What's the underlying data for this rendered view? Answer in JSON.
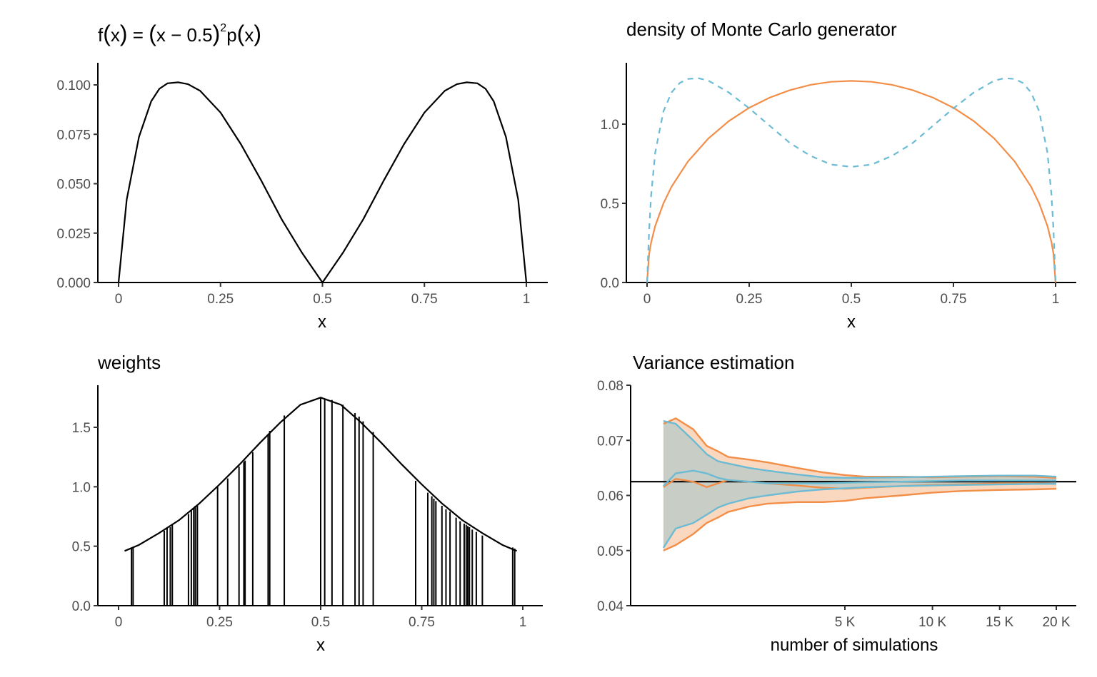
{
  "figure": {
    "panel1": {
      "title_parts": [
        "f",
        "(",
        "x",
        ")",
        " = ",
        "(",
        "x − 0.5",
        ")",
        "2",
        "p",
        "(",
        "x",
        ")"
      ]
    },
    "panel2": {
      "title": "density of Monte Carlo generator"
    },
    "panel3": {
      "title": "weights"
    },
    "panel4": {
      "title": "Variance estimation"
    }
  },
  "chart_data": [
    {
      "type": "line",
      "title": "f(x) = (x − 0.5)²p(x)",
      "xlabel": "x",
      "ylabel": "",
      "xlim": [
        0,
        1
      ],
      "ylim": [
        0,
        0.11
      ],
      "x_ticks": [
        0,
        0.25,
        0.5,
        0.75,
        1
      ],
      "x_tick_labels": [
        "0",
        "0.25",
        "0.5",
        "0.75",
        "1"
      ],
      "y_ticks": [
        0,
        0.025,
        0.05,
        0.075,
        0.1
      ],
      "y_tick_labels": [
        "0.000",
        "0.025",
        "0.050",
        "0.075",
        "0.100"
      ],
      "series": [
        {
          "color": "#000000",
          "dash": "solid",
          "x": [
            0,
            0.02,
            0.05,
            0.08,
            0.1,
            0.12,
            0.146,
            0.17,
            0.2,
            0.25,
            0.3,
            0.35,
            0.4,
            0.45,
            0.5,
            0.55,
            0.6,
            0.65,
            0.7,
            0.75,
            0.8,
            0.83,
            0.854,
            0.88,
            0.9,
            0.92,
            0.95,
            0.98,
            1
          ],
          "y": [
            0,
            0.0419,
            0.0737,
            0.0917,
            0.098,
            0.1008,
            0.1013,
            0.1004,
            0.097,
            0.086,
            0.07,
            0.0515,
            0.032,
            0.015,
            0,
            0.015,
            0.032,
            0.0515,
            0.07,
            0.086,
            0.097,
            0.1004,
            0.1013,
            0.1008,
            0.098,
            0.0917,
            0.0737,
            0.0419,
            0
          ]
        }
      ]
    },
    {
      "type": "line",
      "title": "density of Monte Carlo generator",
      "xlabel": "x",
      "ylabel": "",
      "xlim": [
        0,
        1
      ],
      "ylim": [
        0,
        1.3
      ],
      "x_ticks": [
        0,
        0.25,
        0.5,
        0.75,
        1
      ],
      "x_tick_labels": [
        "0",
        "0.25",
        "0.5",
        "0.75",
        "1"
      ],
      "y_ticks": [
        0,
        0.5,
        1.0
      ],
      "y_tick_labels": [
        "0.0",
        "0.5",
        "1.0"
      ],
      "series": [
        {
          "color": "#F28E48",
          "dash": "solid",
          "x": [
            0,
            0.005,
            0.01,
            0.02,
            0.04,
            0.06,
            0.1,
            0.15,
            0.2,
            0.25,
            0.3,
            0.35,
            0.4,
            0.45,
            0.5,
            0.55,
            0.6,
            0.65,
            0.7,
            0.75,
            0.8,
            0.85,
            0.9,
            0.94,
            0.96,
            0.98,
            0.99,
            0.995,
            1
          ],
          "y": [
            0,
            0.18,
            0.253,
            0.357,
            0.499,
            0.605,
            0.764,
            0.909,
            1.019,
            1.103,
            1.167,
            1.215,
            1.248,
            1.267,
            1.273,
            1.267,
            1.248,
            1.215,
            1.167,
            1.103,
            1.019,
            0.909,
            0.764,
            0.605,
            0.499,
            0.357,
            0.253,
            0.18,
            0
          ]
        },
        {
          "color": "#6BBBD4",
          "dash": "dashed",
          "x": [
            0,
            0.005,
            0.01,
            0.02,
            0.04,
            0.06,
            0.08,
            0.1,
            0.125,
            0.15,
            0.2,
            0.25,
            0.3,
            0.35,
            0.4,
            0.45,
            0.5,
            0.55,
            0.6,
            0.65,
            0.7,
            0.75,
            0.8,
            0.85,
            0.875,
            0.9,
            0.92,
            0.94,
            0.96,
            0.98,
            0.99,
            0.995,
            1
          ],
          "y": [
            0,
            0.33,
            0.55,
            0.82,
            1.08,
            1.2,
            1.26,
            1.285,
            1.29,
            1.275,
            1.2,
            1.1,
            0.99,
            0.88,
            0.8,
            0.745,
            0.73,
            0.745,
            0.8,
            0.88,
            0.99,
            1.1,
            1.2,
            1.275,
            1.29,
            1.285,
            1.26,
            1.2,
            1.08,
            0.82,
            0.55,
            0.33,
            0
          ]
        }
      ]
    },
    {
      "type": "line",
      "title": "weights",
      "xlabel": "x",
      "ylabel": "",
      "xlim": [
        0,
        1
      ],
      "ylim": [
        0,
        1.8
      ],
      "x_ticks": [
        0,
        0.25,
        0.5,
        0.75,
        1
      ],
      "x_tick_labels": [
        "0",
        "0.25",
        "0.5",
        "0.75",
        "1"
      ],
      "y_ticks": [
        0,
        0.5,
        1.0,
        1.5
      ],
      "y_tick_labels": [
        "0.0",
        "0.5",
        "1.0",
        "1.5"
      ],
      "curve": {
        "x": [
          0.015,
          0.05,
          0.1,
          0.15,
          0.2,
          0.25,
          0.3,
          0.35,
          0.4,
          0.45,
          0.5,
          0.55,
          0.6,
          0.65,
          0.7,
          0.75,
          0.8,
          0.85,
          0.9,
          0.95,
          0.985
        ],
        "y": [
          0.46,
          0.51,
          0.61,
          0.72,
          0.86,
          1.02,
          1.19,
          1.37,
          1.54,
          1.69,
          1.75,
          1.69,
          1.54,
          1.37,
          1.19,
          1.02,
          0.86,
          0.72,
          0.61,
          0.51,
          0.46
        ]
      },
      "sample_x": [
        0.032,
        0.036,
        0.113,
        0.12,
        0.128,
        0.133,
        0.173,
        0.18,
        0.186,
        0.19,
        0.195,
        0.245,
        0.27,
        0.298,
        0.31,
        0.313,
        0.332,
        0.37,
        0.374,
        0.41,
        0.5,
        0.51,
        0.528,
        0.555,
        0.585,
        0.595,
        0.605,
        0.63,
        0.735,
        0.765,
        0.775,
        0.78,
        0.785,
        0.8,
        0.81,
        0.82,
        0.835,
        0.845,
        0.855,
        0.86,
        0.864,
        0.868,
        0.875,
        0.885,
        0.9,
        0.975,
        0.98
      ],
      "sample_y": [
        0.48,
        0.49,
        0.63,
        0.65,
        0.66,
        0.68,
        0.77,
        0.8,
        0.82,
        0.84,
        0.85,
        1.0,
        1.07,
        1.17,
        1.21,
        1.22,
        1.29,
        1.44,
        1.47,
        1.6,
        1.75,
        1.74,
        1.73,
        1.69,
        1.62,
        1.59,
        1.55,
        1.46,
        1.05,
        0.95,
        0.92,
        0.9,
        0.88,
        0.84,
        0.81,
        0.79,
        0.74,
        0.71,
        0.69,
        0.68,
        0.67,
        0.66,
        0.64,
        0.62,
        0.59,
        0.49,
        0.48
      ]
    },
    {
      "type": "line",
      "title": "Variance estimation",
      "xlabel": "number of simulations",
      "ylabel": "",
      "xlim": [
        0,
        20000
      ],
      "x_scale": "sqrt",
      "ylim": [
        0.04,
        0.08
      ],
      "x_ticks": [
        5000,
        10000,
        15000,
        20000
      ],
      "x_tick_labels": [
        "5 K",
        "10 K",
        "15 K",
        "20 K"
      ],
      "y_ticks": [
        0.04,
        0.05,
        0.06,
        0.07,
        0.08
      ],
      "y_tick_labels": [
        "0.04",
        "0.05",
        "0.06",
        "0.07",
        "0.08"
      ],
      "reference_line": 0.0625,
      "series": [
        {
          "color": "#F28E48",
          "role": "upper",
          "x": [
            100,
            200,
            400,
            600,
            800,
            1000,
            1500,
            2000,
            3000,
            4000,
            5000,
            6000,
            8000,
            10000,
            12000,
            15000,
            18000,
            20000
          ],
          "y": [
            0.073,
            0.074,
            0.072,
            0.069,
            0.068,
            0.067,
            0.0665,
            0.066,
            0.065,
            0.0642,
            0.0637,
            0.0634,
            0.0634,
            0.0633,
            0.0634,
            0.0635,
            0.0634,
            0.0632
          ]
        },
        {
          "color": "#F28E48",
          "role": "mean",
          "x": [
            100,
            200,
            400,
            600,
            800,
            1000,
            1500,
            2000,
            3000,
            4000,
            5000,
            6000,
            8000,
            10000,
            12000,
            15000,
            18000,
            20000
          ],
          "y": [
            0.0615,
            0.063,
            0.0625,
            0.0615,
            0.0622,
            0.0628,
            0.0625,
            0.0622,
            0.0618,
            0.0614,
            0.0612,
            0.0614,
            0.0617,
            0.0619,
            0.062,
            0.0622,
            0.0622,
            0.0621
          ]
        },
        {
          "color": "#F28E48",
          "role": "lower",
          "x": [
            100,
            200,
            400,
            600,
            800,
            1000,
            1500,
            2000,
            3000,
            4000,
            5000,
            6000,
            8000,
            10000,
            12000,
            15000,
            18000,
            20000
          ],
          "y": [
            0.05,
            0.051,
            0.053,
            0.055,
            0.056,
            0.057,
            0.058,
            0.0585,
            0.0588,
            0.0588,
            0.059,
            0.0595,
            0.06,
            0.0605,
            0.0608,
            0.061,
            0.0611,
            0.0612
          ]
        },
        {
          "color": "#6BBBD4",
          "role": "upper",
          "x": [
            100,
            200,
            400,
            600,
            800,
            1000,
            1500,
            2000,
            3000,
            4000,
            5000,
            6000,
            8000,
            10000,
            12000,
            15000,
            18000,
            20000
          ],
          "y": [
            0.0735,
            0.073,
            0.07,
            0.0675,
            0.0662,
            0.0658,
            0.065,
            0.0645,
            0.0638,
            0.0633,
            0.0632,
            0.0632,
            0.0633,
            0.0634,
            0.0635,
            0.0636,
            0.0636,
            0.0634
          ]
        },
        {
          "color": "#6BBBD4",
          "role": "mean",
          "x": [
            100,
            200,
            400,
            600,
            800,
            1000,
            1500,
            2000,
            3000,
            4000,
            5000,
            6000,
            8000,
            10000,
            12000,
            15000,
            18000,
            20000
          ],
          "y": [
            0.0617,
            0.064,
            0.0645,
            0.064,
            0.0632,
            0.0628,
            0.0625,
            0.0622,
            0.0622,
            0.0622,
            0.0623,
            0.0624,
            0.0625,
            0.0626,
            0.0627,
            0.0627,
            0.0627,
            0.0627
          ]
        },
        {
          "color": "#6BBBD4",
          "role": "lower",
          "x": [
            100,
            200,
            400,
            600,
            800,
            1000,
            1500,
            2000,
            3000,
            4000,
            5000,
            6000,
            8000,
            10000,
            12000,
            15000,
            18000,
            20000
          ],
          "y": [
            0.0505,
            0.054,
            0.055,
            0.0565,
            0.0578,
            0.0585,
            0.0595,
            0.06,
            0.0607,
            0.0611,
            0.0613,
            0.0615,
            0.0617,
            0.0618,
            0.0619,
            0.062,
            0.0621,
            0.0621
          ]
        }
      ],
      "band_colors": {
        "orange": "#F28E48",
        "blue": "#6BBBD4",
        "overlap": "#BFC5BE"
      }
    }
  ]
}
